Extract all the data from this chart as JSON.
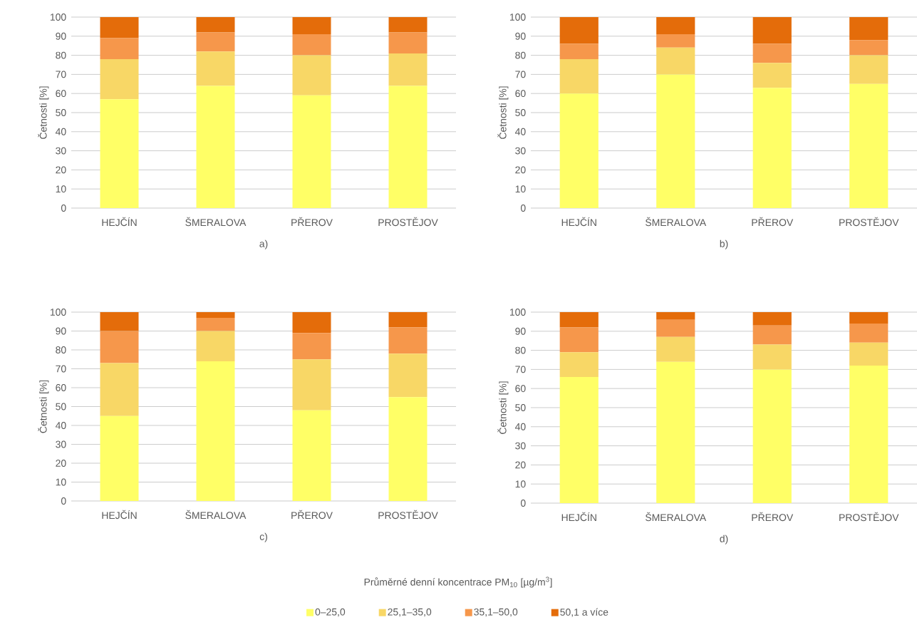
{
  "chart_data": [
    {
      "type": "bar",
      "stacked": true,
      "xlabel": "a)",
      "ylabel": "Četnosti [%]",
      "categories": [
        "HEJČÍN",
        "ŠMERALOVA",
        "PŘEROV",
        "PROSTĚJOV"
      ],
      "ylim": [
        0,
        100
      ],
      "yticks": [
        0,
        10,
        20,
        30,
        40,
        50,
        60,
        70,
        80,
        90,
        100
      ],
      "grid": "y",
      "series": [
        {
          "color": "#ffff66",
          "values": [
            57,
            64,
            59,
            64
          ]
        },
        {
          "color": "#f8d766",
          "values": [
            21,
            18,
            21,
            17
          ]
        },
        {
          "color": "#f6974b",
          "values": [
            11,
            10,
            11,
            11
          ]
        },
        {
          "color": "#e46c0a",
          "values": [
            11,
            8,
            9,
            8
          ]
        }
      ]
    },
    {
      "type": "bar",
      "stacked": true,
      "xlabel": "b)",
      "ylabel": "Četnosti [%]",
      "categories": [
        "HEJČÍN",
        "ŠMERALOVA",
        "PŘEROV",
        "PROSTĚJOV"
      ],
      "ylim": [
        0,
        100
      ],
      "yticks": [
        0,
        10,
        20,
        30,
        40,
        50,
        60,
        70,
        80,
        90,
        100
      ],
      "grid": "y",
      "series": [
        {
          "color": "#ffff66",
          "values": [
            60,
            70,
            63,
            65
          ]
        },
        {
          "color": "#f8d766",
          "values": [
            18,
            14,
            13,
            15
          ]
        },
        {
          "color": "#f6974b",
          "values": [
            8,
            7,
            10,
            8
          ]
        },
        {
          "color": "#e46c0a",
          "values": [
            14,
            9,
            14,
            12
          ]
        }
      ]
    },
    {
      "type": "bar",
      "stacked": true,
      "xlabel": "c)",
      "ylabel": "Četnosti [%]",
      "categories": [
        "HEJČÍN",
        "ŠMERALOVA",
        "PŘEROV",
        "PROSTĚJOV"
      ],
      "ylim": [
        0,
        100
      ],
      "yticks": [
        0,
        10,
        20,
        30,
        40,
        50,
        60,
        70,
        80,
        90,
        100
      ],
      "grid": "y",
      "series": [
        {
          "color": "#ffff66",
          "values": [
            45,
            74,
            48,
            55
          ]
        },
        {
          "color": "#f8d766",
          "values": [
            28,
            16,
            27,
            23
          ]
        },
        {
          "color": "#f6974b",
          "values": [
            17,
            7,
            14,
            14
          ]
        },
        {
          "color": "#e46c0a",
          "values": [
            10,
            3,
            11,
            8
          ]
        }
      ]
    },
    {
      "type": "bar",
      "stacked": true,
      "xlabel": "d)",
      "ylabel": "Četnosti [%]",
      "categories": [
        "HEJČÍN",
        "ŠMERALOVA",
        "PŘEROV",
        "PROSTĚJOV"
      ],
      "ylim": [
        0,
        100
      ],
      "yticks": [
        0,
        10,
        20,
        30,
        40,
        50,
        60,
        70,
        80,
        90,
        100
      ],
      "grid": "y",
      "legend": "bottom",
      "legend_title": "Průměrné denní koncentrace PM$_{10}$ [µg/m$^{3}$]",
      "series": [
        {
          "name": "0–25,0",
          "color": "#ffff66",
          "values": [
            66,
            74,
            70,
            72
          ]
        },
        {
          "name": "25,1–35,0",
          "color": "#f8d766",
          "values": [
            13,
            13,
            13,
            12
          ]
        },
        {
          "name": "35,1–50,0",
          "color": "#f6974b",
          "values": [
            13,
            9,
            10,
            10
          ]
        },
        {
          "name": "50,1 a více",
          "color": "#e46c0a",
          "values": [
            8,
            4,
            7,
            6
          ]
        }
      ]
    }
  ]
}
